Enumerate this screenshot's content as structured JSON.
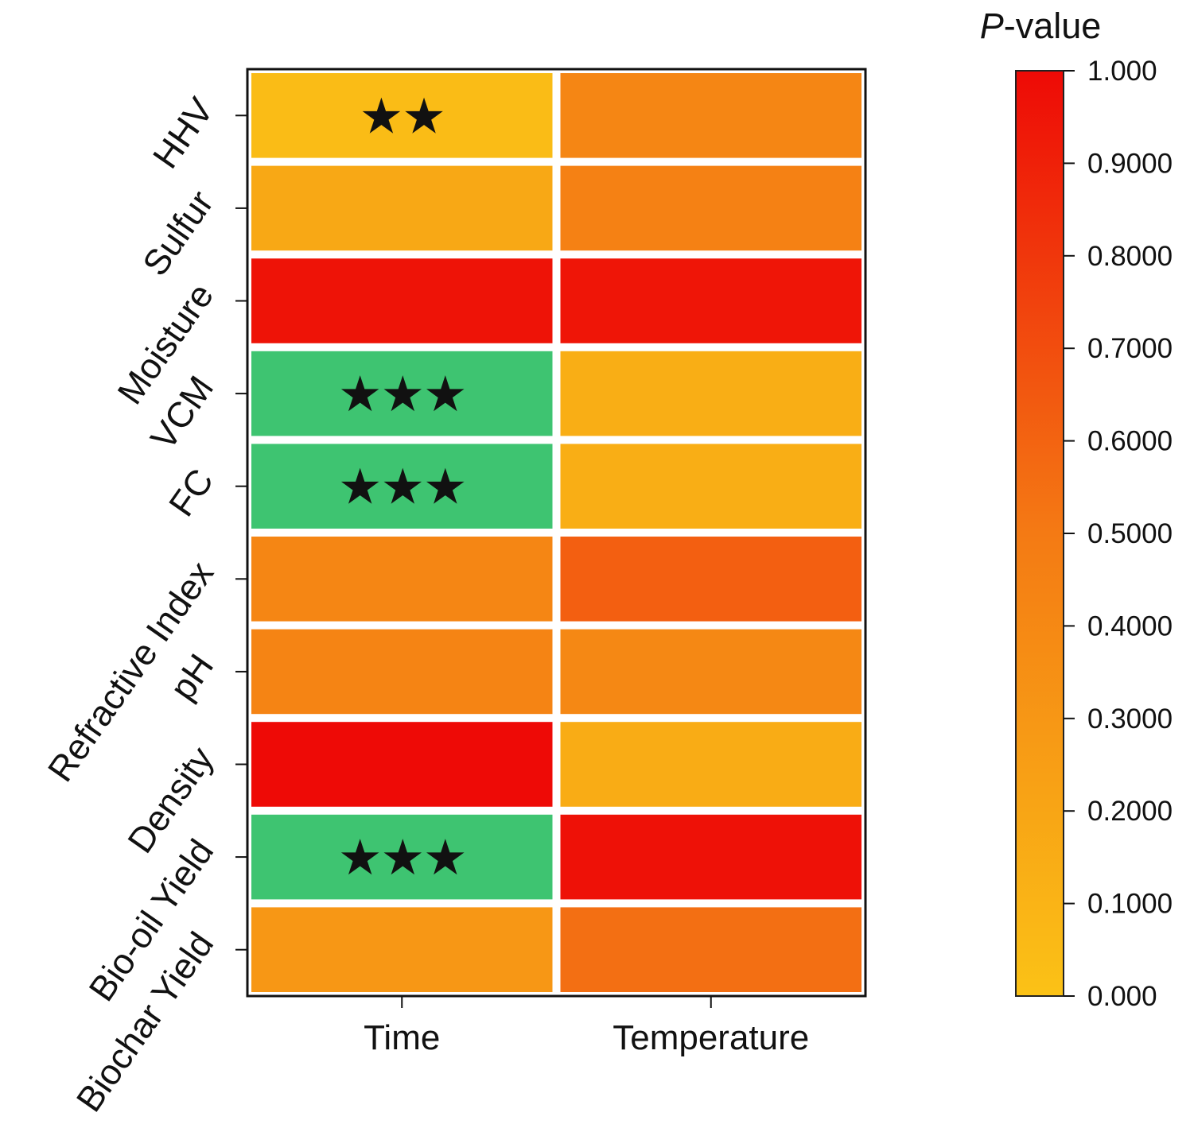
{
  "chart_data": {
    "type": "heatmap",
    "title": "",
    "columns": [
      "Time",
      "Temperature"
    ],
    "rows": [
      "HHV",
      "Sulfur",
      "Moisture",
      "VCM",
      "FC",
      "Refractive Index",
      "pH",
      "Density",
      "Bio-oil Yield",
      "Biochar Yield"
    ],
    "values": [
      [
        0.04,
        0.42
      ],
      [
        0.18,
        0.45
      ],
      [
        0.96,
        0.95
      ],
      null,
      null,
      [
        0.42,
        0.62
      ],
      [
        0.43,
        0.4
      ],
      [
        1.0,
        0.15
      ],
      null,
      [
        0.3,
        0.55
      ]
    ],
    "cells": [
      {
        "row": "HHV",
        "col": "Time",
        "value": 0.04,
        "stars": "★★"
      },
      {
        "row": "HHV",
        "col": "Temperature",
        "value": 0.42,
        "stars": ""
      },
      {
        "row": "Sulfur",
        "col": "Time",
        "value": 0.18,
        "stars": ""
      },
      {
        "row": "Sulfur",
        "col": "Temperature",
        "value": 0.45,
        "stars": ""
      },
      {
        "row": "Moisture",
        "col": "Time",
        "value": 0.96,
        "stars": ""
      },
      {
        "row": "Moisture",
        "col": "Temperature",
        "value": 0.95,
        "stars": ""
      },
      {
        "row": "VCM",
        "col": "Time",
        "value": 0.0,
        "significant": true,
        "stars": "★★★"
      },
      {
        "row": "VCM",
        "col": "Temperature",
        "value": 0.14,
        "stars": ""
      },
      {
        "row": "FC",
        "col": "Time",
        "value": 0.0,
        "significant": true,
        "stars": "★★★"
      },
      {
        "row": "FC",
        "col": "Temperature",
        "value": 0.14,
        "stars": ""
      },
      {
        "row": "Refractive Index",
        "col": "Time",
        "value": 0.42,
        "stars": ""
      },
      {
        "row": "Refractive Index",
        "col": "Temperature",
        "value": 0.62,
        "stars": ""
      },
      {
        "row": "pH",
        "col": "Time",
        "value": 0.43,
        "stars": ""
      },
      {
        "row": "pH",
        "col": "Temperature",
        "value": 0.4,
        "stars": ""
      },
      {
        "row": "Density",
        "col": "Time",
        "value": 1.0,
        "stars": ""
      },
      {
        "row": "Density",
        "col": "Temperature",
        "value": 0.15,
        "stars": ""
      },
      {
        "row": "Bio-oil Yield",
        "col": "Time",
        "value": 0.0,
        "significant": true,
        "stars": "★★★"
      },
      {
        "row": "Bio-oil Yield",
        "col": "Temperature",
        "value": 0.97,
        "stars": ""
      },
      {
        "row": "Biochar Yield",
        "col": "Time",
        "value": 0.3,
        "stars": ""
      },
      {
        "row": "Biochar Yield",
        "col": "Temperature",
        "value": 0.55,
        "stars": ""
      }
    ],
    "colorbar": {
      "title_italic": "P",
      "title_rest": "-value",
      "range": [
        0,
        1
      ],
      "ticks": [
        {
          "value": 1.0,
          "label": "1.000"
        },
        {
          "value": 0.9,
          "label": "0.9000"
        },
        {
          "value": 0.8,
          "label": "0.8000"
        },
        {
          "value": 0.7,
          "label": "0.7000"
        },
        {
          "value": 0.6,
          "label": "0.6000"
        },
        {
          "value": 0.5,
          "label": "0.5000"
        },
        {
          "value": 0.4,
          "label": "0.4000"
        },
        {
          "value": 0.3,
          "label": "0.3000"
        },
        {
          "value": 0.2,
          "label": "0.2000"
        },
        {
          "value": 0.1,
          "label": "0.1000"
        },
        {
          "value": 0.0,
          "label": "0.000"
        }
      ],
      "gradient_low": "#fbc216",
      "gradient_mid": "#f47a14",
      "gradient_high": "#ee0a06",
      "significant_color": "#3ec471"
    }
  }
}
